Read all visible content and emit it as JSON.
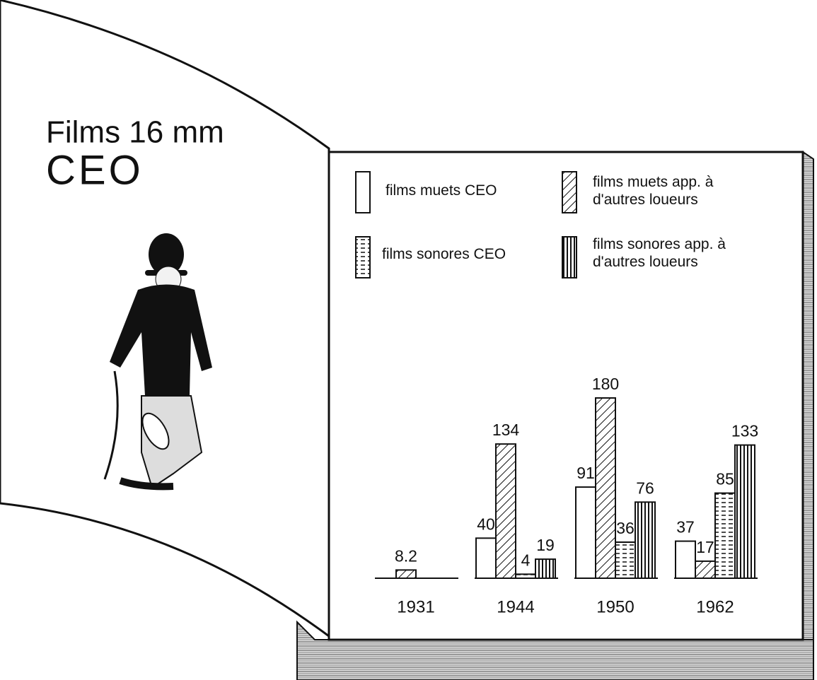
{
  "chart_data": {
    "type": "bar",
    "title": "Films 16 mm",
    "subtitle": "CEO",
    "categories": [
      "1931",
      "1944",
      "1950",
      "1962"
    ],
    "series": [
      {
        "name": "films muets CEO",
        "color": "#ffffff",
        "pattern": "none",
        "values": [
          null,
          40,
          91,
          37
        ]
      },
      {
        "name": "films muets app. à d'autres loueurs",
        "color": "#ffffff",
        "pattern": "diagonal",
        "values": [
          8.2,
          134,
          180,
          17
        ]
      },
      {
        "name": "films sonores CEO",
        "color": "#ffffff",
        "pattern": "horizontal-dashed",
        "values": [
          null,
          4,
          36,
          85
        ]
      },
      {
        "name": "films sonores app. à d'autres loueurs",
        "color": "#ffffff",
        "pattern": "vertical",
        "values": [
          null,
          19,
          76,
          133
        ]
      }
    ],
    "grid": false
  }
}
